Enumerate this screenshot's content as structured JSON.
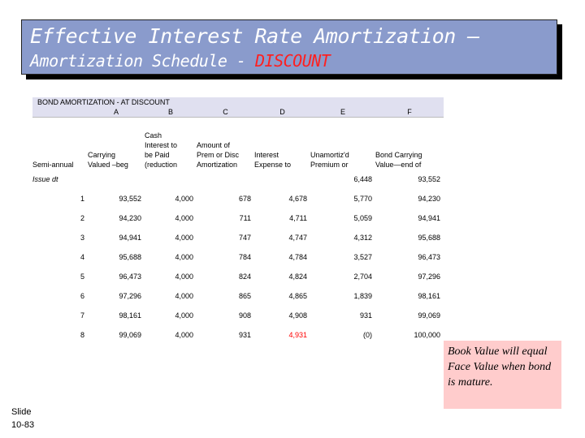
{
  "title": {
    "line1": "Effective Interest Rate Amortization –",
    "line2_prefix": "Amortization Schedule - ",
    "line2_highlight": "DISCOUNT"
  },
  "table": {
    "heading": "BOND AMORTIZATION - AT DISCOUNT",
    "column_letters": [
      "",
      "A",
      "B",
      "C",
      "D",
      "E",
      "F"
    ],
    "headers": [
      "\n\n\nSemi-annual\nint. period",
      "\n\nCarrying\nValued –beg\nof period",
      "Cash\nInterest to\nbe Paid\n(reduction\nto cash)",
      "\nAmount of\nPrem or Disc\nAmortization",
      "\n\nInterest\nExpense to\nbe Recorded",
      "\n\nUnamortiz'd\nPremium or\nDiscount",
      "\n\nBond Carrying\nValue—end of\nperiod"
    ],
    "issue_row": {
      "label": "Issue dt",
      "discount": "6,448",
      "carrying_end": "93,552"
    },
    "rows": [
      {
        "period": "1",
        "carrying_beg": "93,552",
        "cash": "4,000",
        "amort": "678",
        "expense": "4,678",
        "unamortized": "5,770",
        "carrying_end": "94,230"
      },
      {
        "period": "2",
        "carrying_beg": "94,230",
        "cash": "4,000",
        "amort": "711",
        "expense": "4,711",
        "unamortized": "5,059",
        "carrying_end": "94,941"
      },
      {
        "period": "3",
        "carrying_beg": "94,941",
        "cash": "4,000",
        "amort": "747",
        "expense": "4,747",
        "unamortized": "4,312",
        "carrying_end": "95,688"
      },
      {
        "period": "4",
        "carrying_beg": "95,688",
        "cash": "4,000",
        "amort": "784",
        "expense": "4,784",
        "unamortized": "3,527",
        "carrying_end": "96,473"
      },
      {
        "period": "5",
        "carrying_beg": "96,473",
        "cash": "4,000",
        "amort": "824",
        "expense": "4,824",
        "unamortized": "2,704",
        "carrying_end": "97,296"
      },
      {
        "period": "6",
        "carrying_beg": "97,296",
        "cash": "4,000",
        "amort": "865",
        "expense": "4,865",
        "unamortized": "1,839",
        "carrying_end": "98,161"
      },
      {
        "period": "7",
        "carrying_beg": "98,161",
        "cash": "4,000",
        "amort": "908",
        "expense": "4,908",
        "unamortized": "931",
        "carrying_end": "99,069"
      },
      {
        "period": "8",
        "carrying_beg": "99,069",
        "cash": "4,000",
        "amort": "931",
        "expense": "4,931",
        "unamortized": "(0)",
        "carrying_end": "100,000"
      }
    ]
  },
  "note": "Book Value will equal Face Value when bond is mature.",
  "slide_label": {
    "line1": "Slide",
    "line2": "10-83"
  },
  "colors": {
    "title_bg": "#8a9bcc",
    "highlight": "#ff2020",
    "note_bg": "#ffcccc"
  }
}
